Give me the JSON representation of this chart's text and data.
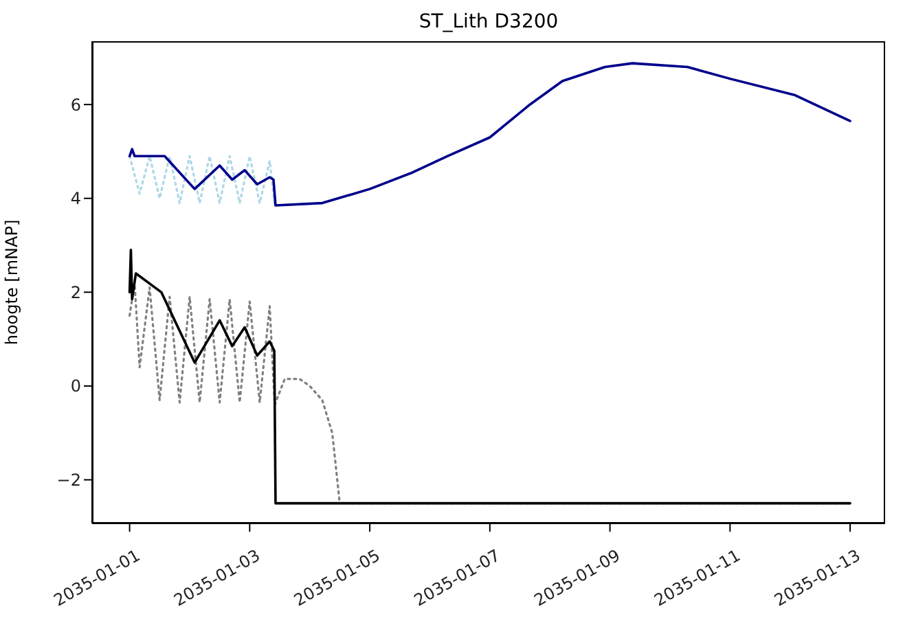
{
  "chart_data": {
    "type": "line",
    "title": "ST_Lith D3200",
    "ylabel": "hoogte [mNAP]",
    "xlim": [
      "2034-12-31T09:00",
      "2035-01-13T14:00"
    ],
    "xticks": [
      "2035-01-01",
      "2035-01-03",
      "2035-01-05",
      "2035-01-07",
      "2035-01-09",
      "2035-01-11",
      "2035-01-13"
    ],
    "ylim": [
      -2.93,
      7.35
    ],
    "yticks": [
      -2,
      0,
      2,
      4,
      6
    ],
    "series": [
      {
        "color": "#add8e6",
        "line_style": "dotted",
        "x": [
          "2035-01-01T00:00",
          "2035-01-01T04:00",
          "2035-01-01T08:00",
          "2035-01-01T12:00",
          "2035-01-01T16:00",
          "2035-01-01T20:00",
          "2035-01-02T00:00",
          "2035-01-02T04:00",
          "2035-01-02T08:00",
          "2035-01-02T12:00",
          "2035-01-02T16:00",
          "2035-01-02T20:00",
          "2035-01-03T00:00",
          "2035-01-03T04:00",
          "2035-01-03T08:00",
          "2035-01-03T10:00",
          "2035-01-04T05:00",
          "2035-01-05T00:00",
          "2035-01-05T17:00",
          "2035-01-06T07:00",
          "2035-01-07T00:00",
          "2035-01-07T16:00",
          "2035-01-08T05:00",
          "2035-01-08T22:00",
          "2035-01-09T09:00",
          "2035-01-10T07:00",
          "2035-01-11T00:00",
          "2035-01-12T02:00",
          "2035-01-13T00:00"
        ],
        "values": [
          4.9,
          4.1,
          4.9,
          4.0,
          4.9,
          3.9,
          4.9,
          3.9,
          4.9,
          3.9,
          4.9,
          3.9,
          4.9,
          3.9,
          4.8,
          3.85,
          3.9,
          4.2,
          4.55,
          4.9,
          5.3,
          6.0,
          6.5,
          6.8,
          6.88,
          6.8,
          6.55,
          6.2,
          5.65
        ]
      },
      {
        "color": "#00008b",
        "line_style": "solid",
        "x": [
          "2035-01-01T00:00",
          "2035-01-01T01:00",
          "2035-01-01T02:00",
          "2035-01-01T14:00",
          "2035-01-02T02:00",
          "2035-01-02T12:00",
          "2035-01-02T17:00",
          "2035-01-02T22:00",
          "2035-01-03T03:00",
          "2035-01-03T08:00",
          "2035-01-03T09:30",
          "2035-01-03T10:20",
          "2035-01-04T05:00",
          "2035-01-05T00:00",
          "2035-01-05T17:00",
          "2035-01-06T07:00",
          "2035-01-07T00:00",
          "2035-01-07T16:00",
          "2035-01-08T05:00",
          "2035-01-08T22:00",
          "2035-01-09T09:00",
          "2035-01-10T07:00",
          "2035-01-11T00:00",
          "2035-01-12T02:00",
          "2035-01-13T00:00"
        ],
        "values": [
          4.9,
          5.05,
          4.9,
          4.9,
          4.2,
          4.7,
          4.4,
          4.6,
          4.3,
          4.45,
          4.4,
          3.85,
          3.9,
          4.2,
          4.55,
          4.9,
          5.3,
          6.0,
          6.5,
          6.8,
          6.88,
          6.8,
          6.55,
          6.2,
          5.65
        ]
      },
      {
        "color": "#808080",
        "line_style": "dotted",
        "x": [
          "2035-01-01T00:00",
          "2035-01-01T02:00",
          "2035-01-01T04:00",
          "2035-01-01T08:00",
          "2035-01-01T12:00",
          "2035-01-01T16:00",
          "2035-01-01T20:00",
          "2035-01-02T00:00",
          "2035-01-02T04:00",
          "2035-01-02T08:00",
          "2035-01-02T12:00",
          "2035-01-02T16:00",
          "2035-01-02T20:00",
          "2035-01-03T00:00",
          "2035-01-03T04:00",
          "2035-01-03T08:00",
          "2035-01-03T10:00",
          "2035-01-03T14:00",
          "2035-01-03T20:00",
          "2035-01-04T00:00",
          "2035-01-04T05:00",
          "2035-01-04T09:00",
          "2035-01-04T11:00",
          "2035-01-04T12:00",
          "2035-01-13T00:00"
        ],
        "values": [
          1.5,
          2.2,
          0.4,
          2.1,
          -0.3,
          1.9,
          -0.35,
          1.9,
          -0.35,
          1.85,
          -0.35,
          1.85,
          -0.35,
          1.8,
          -0.35,
          1.7,
          -0.4,
          0.15,
          0.15,
          0.0,
          -0.3,
          -1.0,
          -2.0,
          -2.5,
          -2.5
        ]
      },
      {
        "color": "#000000",
        "line_style": "solid",
        "x": [
          "2035-01-01T00:00",
          "2035-01-01T00:30",
          "2035-01-01T01:00",
          "2035-01-01T02:30",
          "2035-01-01T12:40",
          "2035-01-01T14:00",
          "2035-01-02T02:00",
          "2035-01-02T12:00",
          "2035-01-02T17:00",
          "2035-01-02T22:00",
          "2035-01-03T03:00",
          "2035-01-03T08:00",
          "2035-01-03T09:50",
          "2035-01-03T10:20",
          "2035-01-13T00:00"
        ],
        "values": [
          2.0,
          2.9,
          1.85,
          2.4,
          2.0,
          1.85,
          0.5,
          1.4,
          0.85,
          1.25,
          0.65,
          0.95,
          0.75,
          -2.5,
          -2.5
        ]
      }
    ]
  }
}
